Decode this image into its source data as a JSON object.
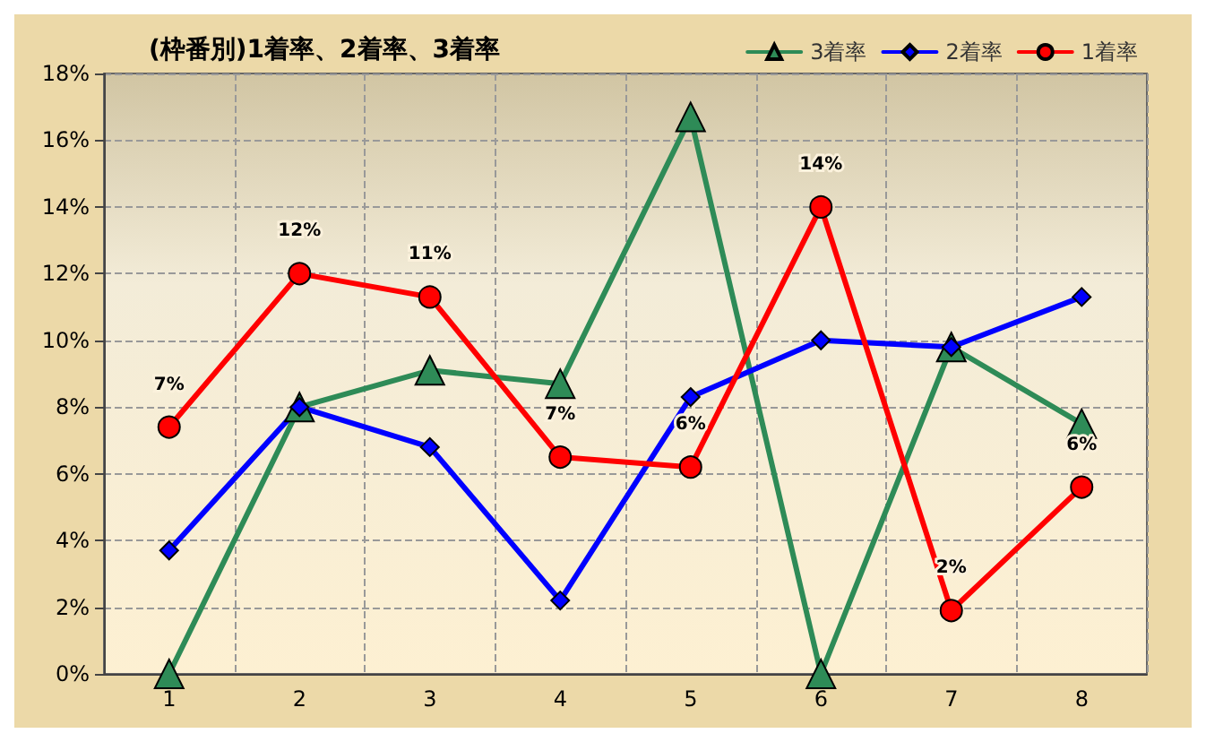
{
  "chart_data": {
    "type": "line",
    "title": "(枠番別)1着率、2着率、3着率",
    "categories": [
      "1",
      "2",
      "3",
      "4",
      "5",
      "6",
      "7",
      "8"
    ],
    "series": [
      {
        "name": "3着率",
        "color": "#2e8b57",
        "marker": "triangle",
        "values": [
          0,
          8.0,
          9.1,
          8.7,
          16.7,
          0,
          9.8,
          7.5
        ]
      },
      {
        "name": "2着率",
        "color": "#0000ff",
        "marker": "diamond",
        "values": [
          3.7,
          8.0,
          6.8,
          2.2,
          8.3,
          10.0,
          9.8,
          11.3
        ]
      },
      {
        "name": "1着率",
        "color": "#ff0000",
        "marker": "circle",
        "values": [
          7.4,
          12.0,
          11.3,
          6.5,
          6.2,
          14.0,
          1.9,
          5.6
        ],
        "value_labels": [
          "7%",
          "12%",
          "11%",
          "7%",
          "6%",
          "14%",
          "2%",
          "6%"
        ]
      }
    ],
    "ylim": [
      0,
      18
    ],
    "yticks": [
      {
        "value": 0,
        "label": "0%"
      },
      {
        "value": 2,
        "label": "2%"
      },
      {
        "value": 4,
        "label": "4%"
      },
      {
        "value": 6,
        "label": "6%"
      },
      {
        "value": 8,
        "label": "8%"
      },
      {
        "value": 10,
        "label": "10%"
      },
      {
        "value": 12,
        "label": "12%"
      },
      {
        "value": 14,
        "label": "14%"
      },
      {
        "value": 16,
        "label": "16%"
      },
      {
        "value": 18,
        "label": "18%"
      }
    ],
    "grid": true,
    "legend": "top right",
    "line_style": "solid"
  }
}
